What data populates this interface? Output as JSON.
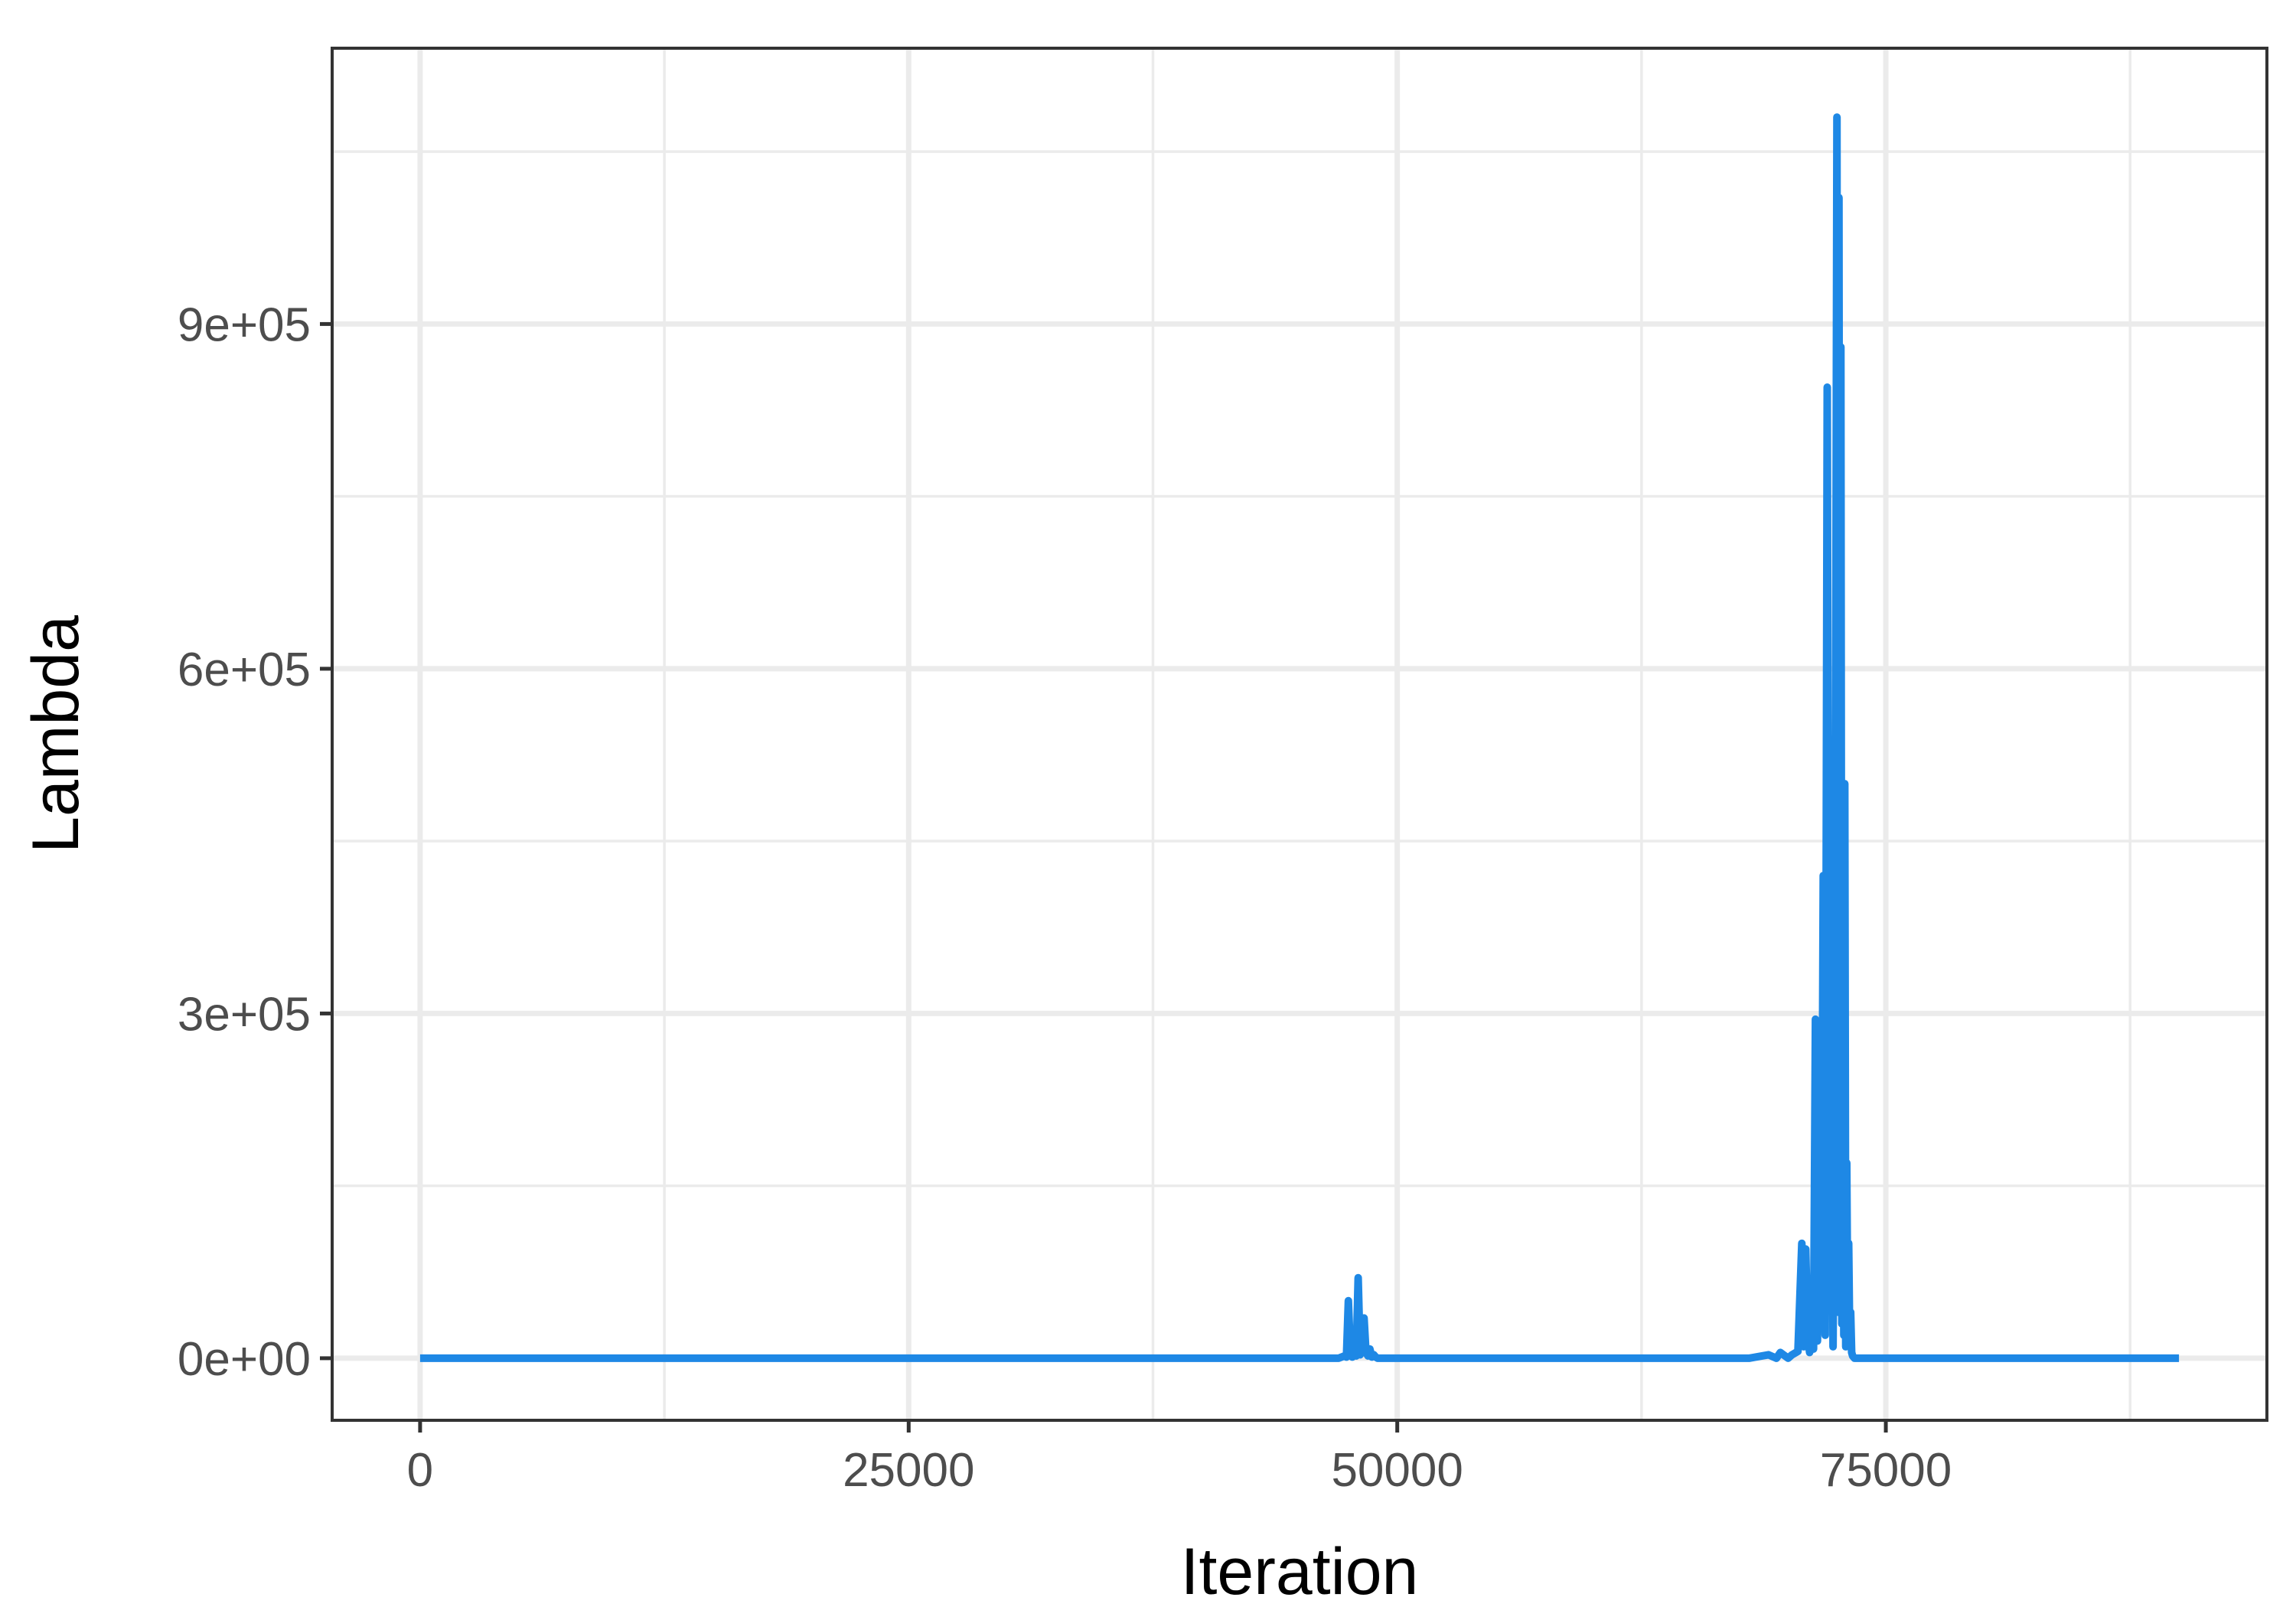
{
  "chart_data": {
    "type": "line",
    "title": "",
    "xlabel": "Iteration",
    "ylabel": "Lambda",
    "xlim": [
      -4500,
      94500
    ],
    "ylim": [
      -54000,
      1140000
    ],
    "x_ticks": [
      0,
      25000,
      50000,
      75000
    ],
    "x_tick_labels": [
      "0",
      "25000",
      "50000",
      "75000"
    ],
    "y_ticks": [
      0,
      300000,
      600000,
      900000
    ],
    "y_tick_labels": [
      "0e+00",
      "3e+05",
      "6e+05",
      "9e+05"
    ],
    "grid": true,
    "legend": "none",
    "line_color": "#1E88E5",
    "series": [
      {
        "x": [
          0,
          47000,
          47300,
          47400,
          47500,
          47600,
          47700,
          47800,
          47900,
          48000,
          48100,
          48200,
          48300,
          48400,
          48500,
          48600,
          48700,
          48800,
          48900,
          49000,
          49200,
          68000,
          69000,
          69400,
          69600,
          70000,
          70200,
          70500,
          70700,
          70800,
          70900,
          71000,
          71100,
          71200,
          71300,
          71400,
          71500,
          71600,
          71700,
          71800,
          71900,
          72000,
          72100,
          72200,
          72300,
          72400,
          72500,
          72550,
          72600,
          72650,
          72700,
          72750,
          72800,
          72850,
          72900,
          72950,
          73000,
          73050,
          73100,
          73150,
          73200,
          73250,
          73300,
          73400,
          73500,
          74000,
          90000
        ],
        "y": [
          0,
          0,
          2000,
          1000,
          50000,
          5000,
          1000,
          8000,
          2000,
          70000,
          3000,
          10000,
          35000,
          5000,
          2000,
          8000,
          1000,
          3000,
          1000,
          0,
          0,
          0,
          3000,
          0,
          5000,
          0,
          3000,
          6000,
          100000,
          10000,
          95000,
          20000,
          5000,
          60000,
          8000,
          295000,
          15000,
          120000,
          30000,
          420000,
          20000,
          845000,
          60000,
          530000,
          10000,
          300000,
          1080000,
          40000,
          1010000,
          70000,
          880000,
          30000,
          350000,
          20000,
          500000,
          10000,
          170000,
          30000,
          100000,
          20000,
          40000,
          5000,
          2000,
          0,
          0,
          0,
          0
        ]
      }
    ]
  }
}
